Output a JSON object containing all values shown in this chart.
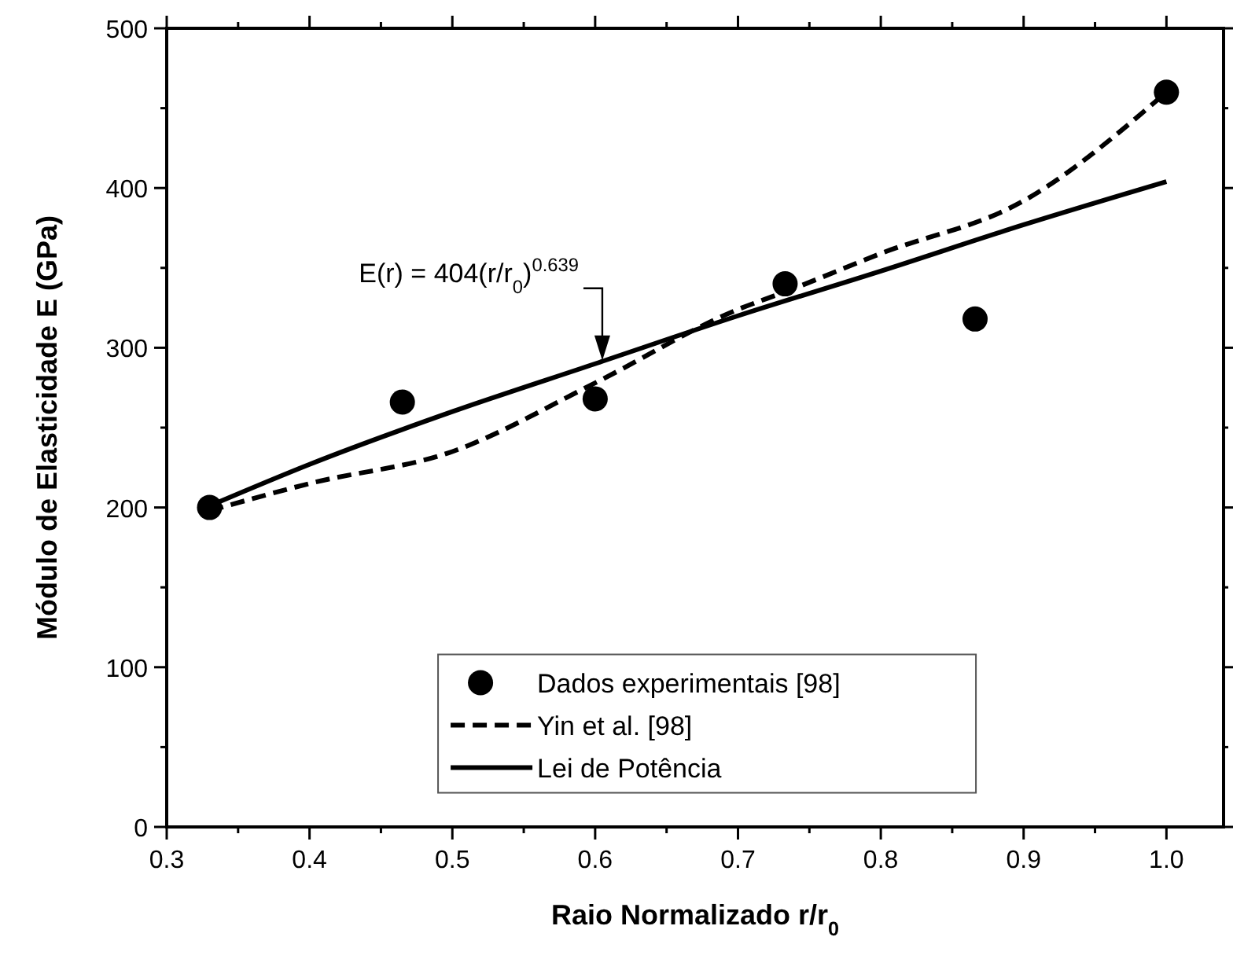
{
  "chart_data": {
    "type": "scatter",
    "xlabel": "Raio Normalizado r/r$_{0}$",
    "ylabel": "Módulo de Elasticidade E (GPa)",
    "xlim": [
      0.3,
      1.04
    ],
    "ylim": [
      0,
      500
    ],
    "xticks": [
      0.3,
      0.4,
      0.5,
      0.6,
      0.7,
      0.8,
      0.9,
      {
        "value": 1,
        "label": "1.0"
      }
    ],
    "yticks": [
      0,
      100,
      200,
      300,
      400,
      500
    ],
    "legend": "bottom",
    "grid": false,
    "series": [
      {
        "name": "Dados experimentais [98]",
        "marker": "circle",
        "color": "#000000",
        "x": [
          0.33,
          0.465,
          0.6,
          0.733,
          0.866,
          1.0
        ],
        "values": [
          200,
          266,
          268,
          340,
          318,
          460
        ]
      },
      {
        "name": "Yin et al. [98]",
        "type": "line",
        "line_style": "dashed",
        "color": "#000000",
        "x": [
          0.33,
          0.4,
          0.5,
          0.6,
          0.7,
          0.733,
          0.8,
          0.9,
          1.0
        ],
        "values": [
          198,
          215,
          235,
          278,
          324,
          335,
          359,
          392,
          460
        ]
      },
      {
        "name": "Lei de Potência",
        "type": "line",
        "line_style": "solid",
        "color": "#000000",
        "x": [
          0.33,
          0.4,
          0.5,
          0.6,
          0.7,
          0.8,
          0.9,
          1.0
        ],
        "values": [
          201,
          227,
          260,
          290,
          320,
          348,
          377,
          404
        ]
      }
    ],
    "annotations": [
      {
        "text": "E(r) = 404(r/r$_{0}$)$^{0.639}$",
        "x": 0.605,
        "y": 290
      }
    ]
  }
}
